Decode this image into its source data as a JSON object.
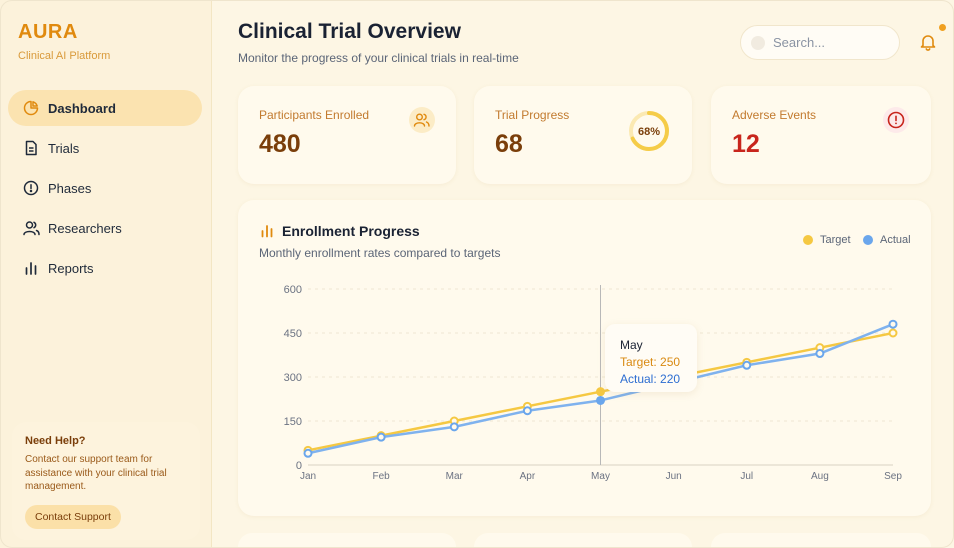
{
  "app": {
    "title": "AURA",
    "subtitle": "Clinical AI Platform"
  },
  "sidebar": {
    "items": [
      {
        "label": "Dashboard",
        "icon": "pie-chart-icon",
        "active": true
      },
      {
        "label": "Trials",
        "icon": "document-icon",
        "active": false
      },
      {
        "label": "Phases",
        "icon": "alert-circle-icon",
        "active": false
      },
      {
        "label": "Researchers",
        "icon": "users-icon",
        "active": false
      },
      {
        "label": "Reports",
        "icon": "bar-chart-icon",
        "active": false
      }
    ],
    "help": {
      "title": "Need Help?",
      "text": "Contact our support team for assistance with your clinical trial management.",
      "button": "Contact Support"
    }
  },
  "header": {
    "title": "Clinical Trial Overview",
    "subtitle": "Monitor the progress of your clinical trials in real-time",
    "search_placeholder": "Search..."
  },
  "stats": [
    {
      "label": "Participants Enrolled",
      "value": "480",
      "icon": "users-icon"
    },
    {
      "label": "Trial Progress",
      "value": "68",
      "ring_label": "68%",
      "percent": 68
    },
    {
      "label": "Adverse Events",
      "value": "12",
      "icon": "alert-circle-icon"
    }
  ],
  "colors": {
    "accent": "#e08a0e",
    "target": "#f5c842",
    "actual": "#7fb2ee",
    "danger": "#c8251c"
  },
  "chart_data": {
    "type": "line",
    "title": "Enrollment Progress",
    "subtitle": "Monthly enrollment rates compared to targets",
    "categories": [
      "Jan",
      "Feb",
      "Mar",
      "Apr",
      "May",
      "Jun",
      "Jul",
      "Aug",
      "Sep"
    ],
    "series": [
      {
        "name": "Target",
        "values": [
          50,
          100,
          150,
          200,
          250,
          300,
          350,
          400,
          450
        ]
      },
      {
        "name": "Actual",
        "values": [
          40,
          95,
          130,
          185,
          220,
          280,
          340,
          380,
          480
        ]
      }
    ],
    "yticks": [
      "0",
      "150",
      "300",
      "450",
      "600"
    ],
    "ylim": [
      0,
      600
    ],
    "grid": true,
    "legend": "top-right",
    "tooltip": {
      "month": "May",
      "target": "Target: 250",
      "actual": "Actual: 220"
    }
  }
}
